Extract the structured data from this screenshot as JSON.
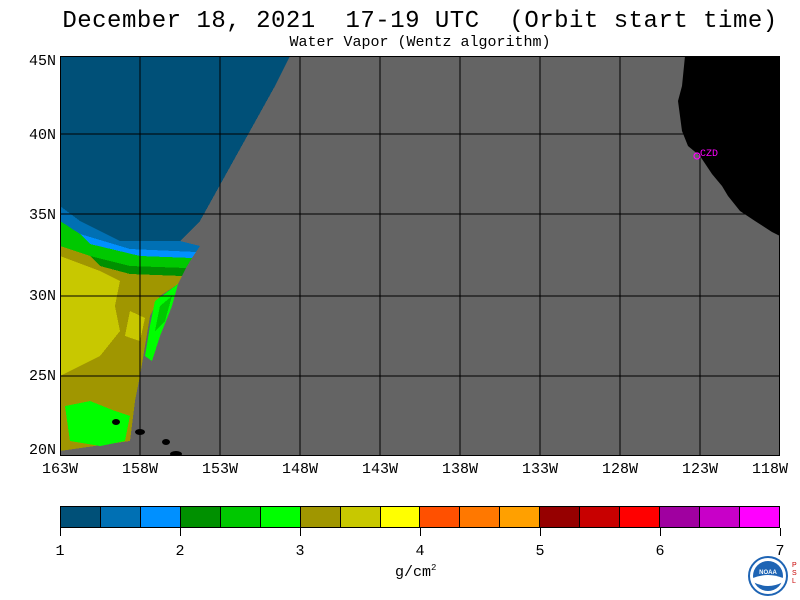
{
  "header": {
    "title": "December 18, 2021  17-19 UTC  (Orbit start time)",
    "subtitle": "Water Vapor (Wentz algorithm)"
  },
  "map": {
    "lat_labels": [
      "45N",
      "40N",
      "35N",
      "30N",
      "25N",
      "20N"
    ],
    "lon_labels": [
      "163W",
      "158W",
      "153W",
      "148W",
      "143W",
      "138W",
      "133W",
      "128W",
      "123W",
      "118W"
    ],
    "station_label": "CZD",
    "colors": {
      "no_data": "#646464",
      "land": "#000000",
      "grid": "#000000",
      "station": "#ff00ff"
    }
  },
  "colorbar": {
    "colors": [
      "#005078",
      "#0070b4",
      "#0090ff",
      "#009000",
      "#00c800",
      "#00ff00",
      "#a09600",
      "#c8c800",
      "#ffff00",
      "#ff5000",
      "#ff7800",
      "#ffa000",
      "#960000",
      "#c80000",
      "#ff0000",
      "#a000a0",
      "#c800c8",
      "#ff00ff"
    ],
    "labels": [
      "1",
      "2",
      "3",
      "4",
      "5",
      "6",
      "7"
    ],
    "units_base": "g/cm",
    "units_exp": "2"
  },
  "logo": {
    "name": "NOAA",
    "side_text": "PSL"
  }
}
